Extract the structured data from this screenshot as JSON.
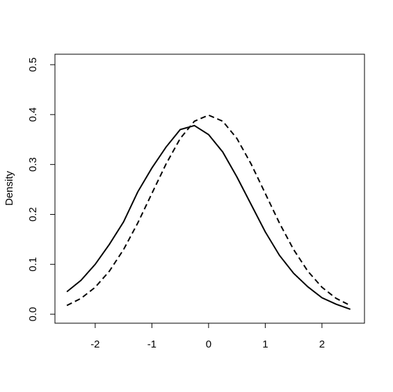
{
  "chart_data": {
    "type": "line",
    "y_label": "Density",
    "x": [
      -2.5,
      -2.25,
      -2,
      -1.75,
      -1.5,
      -1.25,
      -1,
      -0.75,
      -0.5,
      -0.25,
      0,
      0.25,
      0.5,
      0.75,
      1,
      1.25,
      1.5,
      1.75,
      2,
      2.25,
      2.5
    ],
    "series": [
      {
        "color": "#000000",
        "dash": "solid",
        "values": [
          0.045,
          0.068,
          0.1,
          0.14,
          0.185,
          0.245,
          0.293,
          0.335,
          0.37,
          0.378,
          0.36,
          0.325,
          0.275,
          0.22,
          0.165,
          0.118,
          0.082,
          0.055,
          0.033,
          0.02,
          0.01
        ]
      },
      {
        "color": "#000000",
        "dash": "dashed",
        "values": [
          0.0175,
          0.0317,
          0.054,
          0.0863,
          0.1295,
          0.1826,
          0.242,
          0.3011,
          0.3521,
          0.3867,
          0.3989,
          0.3867,
          0.3521,
          0.3011,
          0.242,
          0.1826,
          0.1295,
          0.0863,
          0.054,
          0.0317,
          0.0175
        ]
      }
    ],
    "xlim": [
      -2.71,
      2.75
    ],
    "xticks": [
      -2,
      -1,
      0,
      1,
      2
    ],
    "ylim": [
      -0.018,
      0.521
    ],
    "yticks": [
      {
        "value": 0,
        "label": "0.0"
      },
      0.1,
      0.2,
      0.3,
      0.4,
      0.5
    ]
  }
}
